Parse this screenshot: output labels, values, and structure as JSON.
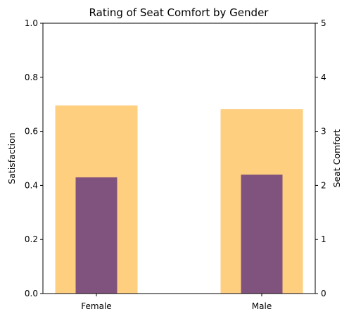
{
  "chart_data": {
    "type": "bar",
    "title": "Rating of Seat Comfort by Gender",
    "categories": [
      "Female",
      "Male"
    ],
    "series": [
      {
        "name": "Seat Comfort",
        "axis": "right",
        "values": [
          3.48,
          3.41
        ],
        "color": "#ffcf80"
      },
      {
        "name": "Satisfaction",
        "axis": "left",
        "values": [
          0.43,
          0.44
        ],
        "color": "#80537e"
      }
    ],
    "ylabel": "Satisfaction",
    "ylim": [
      0,
      1.0
    ],
    "yticks": [
      "0.0",
      "0.2",
      "0.4",
      "0.6",
      "0.8",
      "1.0"
    ],
    "y2label": "Seat Comfort",
    "y2lim": [
      0,
      5
    ],
    "y2ticks": [
      "0",
      "1",
      "2",
      "3",
      "4",
      "5"
    ],
    "grid": false,
    "legend": "none"
  }
}
